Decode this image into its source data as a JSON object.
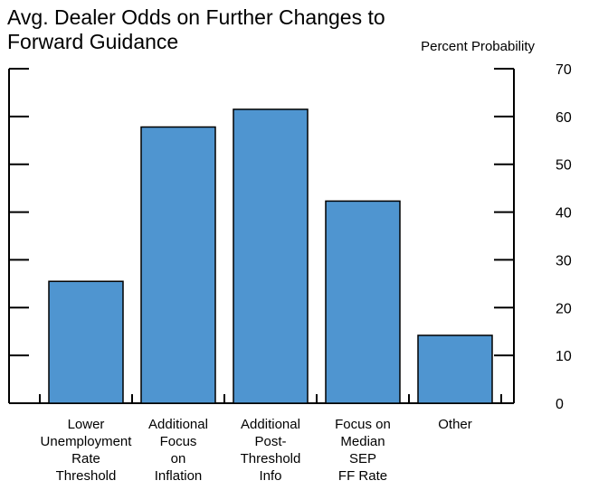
{
  "chart_data": {
    "type": "bar",
    "title_lines": [
      "Avg. Dealer Odds on Further Changes to",
      "Forward Guidance"
    ],
    "ylabel": "Percent Probability",
    "xlabel": "",
    "categories": [
      [
        "Lower",
        "Unemployment",
        "Rate",
        "Threshold"
      ],
      [
        "Additional",
        "Focus",
        "on",
        "Inflation"
      ],
      [
        "Additional",
        "Post-",
        "Threshold",
        "Info"
      ],
      [
        "Focus on",
        "Median",
        "SEP",
        "FF Rate"
      ],
      [
        "Other"
      ]
    ],
    "values": [
      25.5,
      57.8,
      61.5,
      42.3,
      14.2
    ],
    "ylim": [
      0,
      70
    ],
    "yticks": [
      0,
      10,
      20,
      30,
      40,
      50,
      60,
      70
    ],
    "y_axis_side": "right",
    "grid": false,
    "legend": "none",
    "bar_color": "#4f95d0",
    "bar_edge_color": "#000000"
  }
}
